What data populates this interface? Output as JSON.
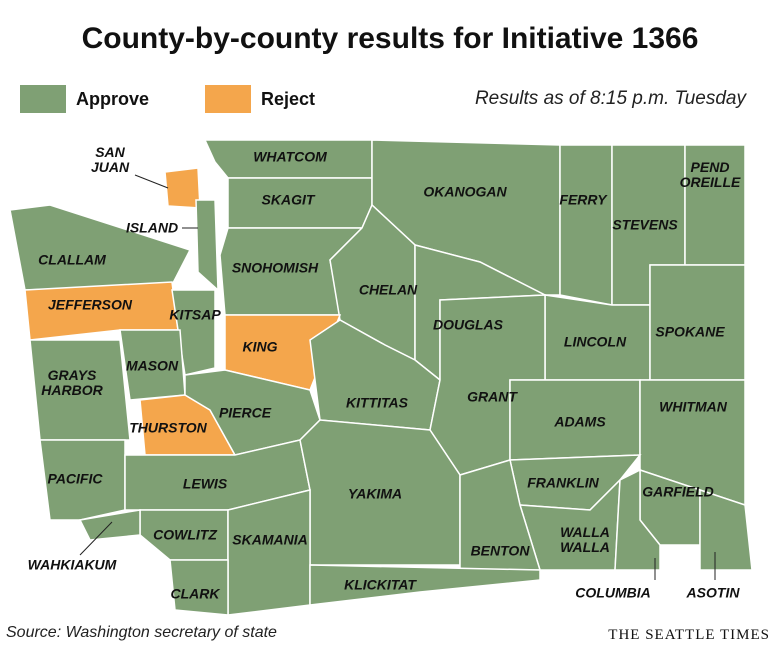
{
  "title": "County-by-county results for Initiative 1366",
  "legend": [
    {
      "label": "Approve",
      "color": "#7fa074"
    },
    {
      "label": "Reject",
      "color": "#f4a64c"
    }
  ],
  "timestamp": "Results as of 8:15 p.m. Tuesday",
  "source": "Source: Washington secretary of state",
  "credit": "THE SEATTLE TIMES",
  "counties": [
    {
      "name": "WHATCOM",
      "result": "Approve"
    },
    {
      "name": "SKAGIT",
      "result": "Approve"
    },
    {
      "name": "OKANOGAN",
      "result": "Approve"
    },
    {
      "name": "FERRY",
      "result": "Approve"
    },
    {
      "name": "STEVENS",
      "result": "Approve"
    },
    {
      "name": "PEND OREILLE",
      "result": "Approve"
    },
    {
      "name": "SAN JUAN",
      "result": "Reject"
    },
    {
      "name": "ISLAND",
      "result": "Approve"
    },
    {
      "name": "CLALLAM",
      "result": "Approve"
    },
    {
      "name": "SNOHOMISH",
      "result": "Approve"
    },
    {
      "name": "CHELAN",
      "result": "Approve"
    },
    {
      "name": "DOUGLAS",
      "result": "Approve"
    },
    {
      "name": "LINCOLN",
      "result": "Approve"
    },
    {
      "name": "SPOKANE",
      "result": "Approve"
    },
    {
      "name": "JEFFERSON",
      "result": "Reject"
    },
    {
      "name": "KITSAP",
      "result": "Approve"
    },
    {
      "name": "KING",
      "result": "Reject"
    },
    {
      "name": "MASON",
      "result": "Approve"
    },
    {
      "name": "GRAYS HARBOR",
      "result": "Approve"
    },
    {
      "name": "KITTITAS",
      "result": "Approve"
    },
    {
      "name": "GRANT",
      "result": "Approve"
    },
    {
      "name": "ADAMS",
      "result": "Approve"
    },
    {
      "name": "WHITMAN",
      "result": "Approve"
    },
    {
      "name": "THURSTON",
      "result": "Reject"
    },
    {
      "name": "PIERCE",
      "result": "Approve"
    },
    {
      "name": "PACIFIC",
      "result": "Approve"
    },
    {
      "name": "LEWIS",
      "result": "Approve"
    },
    {
      "name": "FRANKLIN",
      "result": "Approve"
    },
    {
      "name": "GARFIELD",
      "result": "Approve"
    },
    {
      "name": "YAKIMA",
      "result": "Approve"
    },
    {
      "name": "COWLITZ",
      "result": "Approve"
    },
    {
      "name": "SKAMANIA",
      "result": "Approve"
    },
    {
      "name": "WAHKIAKUM",
      "result": "Approve"
    },
    {
      "name": "WALLA WALLA",
      "result": "Approve"
    },
    {
      "name": "BENTON",
      "result": "Approve"
    },
    {
      "name": "KLICKITAT",
      "result": "Approve"
    },
    {
      "name": "CLARK",
      "result": "Approve"
    },
    {
      "name": "COLUMBIA",
      "result": "Approve"
    },
    {
      "name": "ASOTIN",
      "result": "Approve"
    }
  ]
}
